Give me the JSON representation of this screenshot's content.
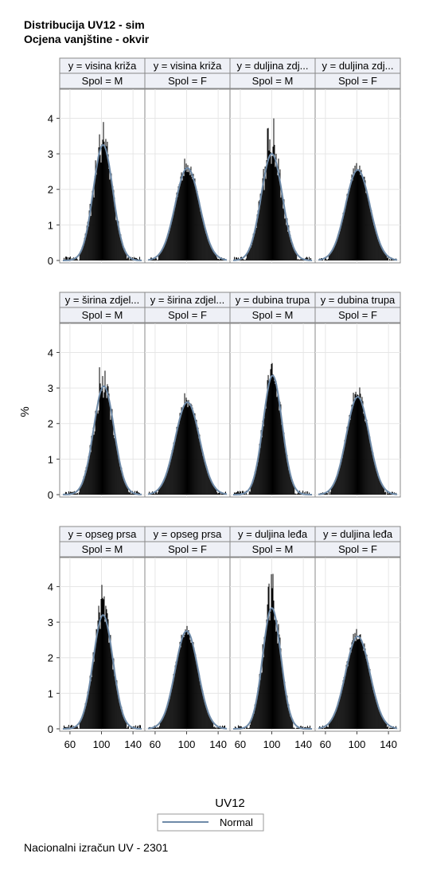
{
  "title_lines": [
    "Distribucija UV12 - sim",
    "Ocjena vanjštine - okvir"
  ],
  "footnote": "Nacionalni izračun UV - 2301",
  "colors": {
    "bars": "#000000",
    "curve": "#6e8aa8",
    "header_bg": "#eef0f6",
    "grid": "#e6e6e6",
    "frame": "#888888"
  },
  "chart_data": {
    "type": "panel-histogram",
    "xlabel": "UV12",
    "ylabel": "%",
    "x_ticks": [
      60,
      100,
      140
    ],
    "x_range": [
      50,
      152
    ],
    "y_ticks": [
      0,
      1,
      2,
      3,
      4
    ],
    "y_range": [
      0,
      4.75
    ],
    "grid": true,
    "legend": {
      "position": "bottom-center",
      "entries": [
        "Normal"
      ]
    },
    "panels": [
      {
        "var": "y = visina križa",
        "sex": "Spol = M",
        "mean": 102,
        "sd": 12.5,
        "curve_peak": 3.25,
        "bar_peak": 4.35,
        "spikiness": 0.35
      },
      {
        "var": "y = visina križa",
        "sex": "Spol = F",
        "mean": 101,
        "sd": 15.5,
        "curve_peak": 2.6,
        "bar_peak": 3.0,
        "spikiness": 0.15
      },
      {
        "var": "y = duljina zdj...",
        "sex": "Spol = M",
        "mean": 100,
        "sd": 13.5,
        "curve_peak": 3.0,
        "bar_peak": 4.2,
        "spikiness": 0.35
      },
      {
        "var": "y = duljina zdj...",
        "sex": "Spol = F",
        "mean": 101,
        "sd": 15.5,
        "curve_peak": 2.55,
        "bar_peak": 3.0,
        "spikiness": 0.15
      },
      {
        "var": "y = širina zdjel...",
        "sex": "Spol = M",
        "mean": 103,
        "sd": 13.0,
        "curve_peak": 3.05,
        "bar_peak": 4.0,
        "spikiness": 0.3
      },
      {
        "var": "y = širina zdjel...",
        "sex": "Spol = F",
        "mean": 101,
        "sd": 15.5,
        "curve_peak": 2.6,
        "bar_peak": 2.95,
        "spikiness": 0.15
      },
      {
        "var": "y = dubina trupa",
        "sex": "Spol = M",
        "mean": 101,
        "sd": 12.0,
        "curve_peak": 3.35,
        "bar_peak": 3.9,
        "spikiness": 0.25
      },
      {
        "var": "y = dubina trupa",
        "sex": "Spol = F",
        "mean": 101,
        "sd": 14.5,
        "curve_peak": 2.75,
        "bar_peak": 3.2,
        "spikiness": 0.15
      },
      {
        "var": "y = opseg prsa",
        "sex": "Spol = M",
        "mean": 102,
        "sd": 12.5,
        "curve_peak": 3.2,
        "bar_peak": 4.05,
        "spikiness": 0.3
      },
      {
        "var": "y = opseg prsa",
        "sex": "Spol = F",
        "mean": 100,
        "sd": 14.5,
        "curve_peak": 2.75,
        "bar_peak": 3.3,
        "spikiness": 0.15
      },
      {
        "var": "y = duljina leđa",
        "sex": "Spol = M",
        "mean": 100,
        "sd": 11.5,
        "curve_peak": 3.4,
        "bar_peak": 4.6,
        "spikiness": 0.35
      },
      {
        "var": "y = duljina leđa",
        "sex": "Spol = F",
        "mean": 101,
        "sd": 15.5,
        "curve_peak": 2.6,
        "bar_peak": 3.0,
        "spikiness": 0.15
      }
    ]
  }
}
